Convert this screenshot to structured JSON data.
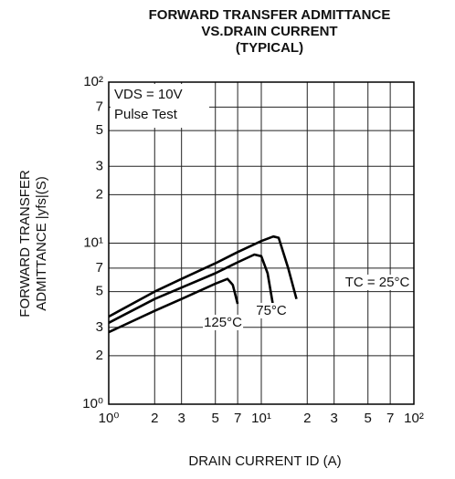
{
  "chart_data": {
    "type": "line",
    "title": [
      "FORWARD TRANSFER ADMITTANCE",
      "VS.DRAIN CURRENT",
      "(TYPICAL)"
    ],
    "xlabel": "DRAIN CURRENT  ID (A)",
    "ylabel": [
      "FORWARD TRANSFER",
      "ADMITTANCE  |yfs|(S)"
    ],
    "annotations": [
      "VDS = 10V",
      "Pulse Test"
    ],
    "log_x": true,
    "log_y": true,
    "grid": true,
    "xlim": [
      1,
      100
    ],
    "ylim": [
      1,
      100
    ],
    "xticks": [
      {
        "value": 1,
        "label": "10⁰"
      },
      2,
      3,
      5,
      7,
      {
        "value": 10,
        "label": "10¹"
      },
      {
        "value": 20,
        "label": "2"
      },
      {
        "value": 30,
        "label": "3"
      },
      {
        "value": 50,
        "label": "5"
      },
      {
        "value": 70,
        "label": "7"
      },
      {
        "value": 100,
        "label": "10²"
      }
    ],
    "yticks": [
      {
        "value": 1,
        "label": "10⁰"
      },
      2,
      3,
      5,
      7,
      {
        "value": 10,
        "label": "10¹"
      },
      {
        "value": 20,
        "label": "2"
      },
      {
        "value": 30,
        "label": "3"
      },
      {
        "value": 50,
        "label": "5"
      },
      {
        "value": 70,
        "label": "7"
      },
      {
        "value": 100,
        "label": "10²"
      }
    ],
    "series": [
      {
        "name": "TC = 25°C",
        "color": "#000000",
        "x": [
          1,
          2,
          3,
          5,
          7,
          10,
          12,
          13,
          15,
          17
        ],
        "values": [
          3.5,
          5,
          6,
          7.5,
          8.8,
          10.3,
          11,
          10.8,
          7,
          4.5
        ]
      },
      {
        "name": "75°C",
        "color": "#000000",
        "x": [
          1,
          2,
          3,
          5,
          7,
          9,
          10,
          11,
          12
        ],
        "values": [
          3.2,
          4.5,
          5.3,
          6.5,
          7.6,
          8.5,
          8.3,
          6.5,
          4
        ]
      },
      {
        "name": "125°C",
        "color": "#000000",
        "x": [
          1,
          2,
          3,
          5,
          6,
          6.5,
          7
        ],
        "values": [
          2.8,
          3.8,
          4.5,
          5.6,
          6,
          5.5,
          4.2
        ]
      }
    ]
  }
}
